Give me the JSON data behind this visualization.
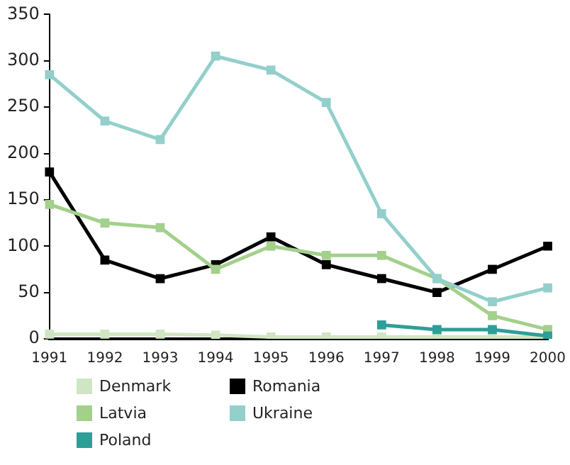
{
  "chart_data": {
    "type": "line",
    "categories": [
      "1991",
      "1992",
      "1993",
      "1994",
      "1995",
      "1996",
      "1997",
      "1998",
      "1999",
      "2000"
    ],
    "series": [
      {
        "name": "Denmark",
        "color": "#cfe5c3",
        "values": [
          5,
          5,
          5,
          4,
          2,
          2,
          2,
          2,
          2,
          2
        ]
      },
      {
        "name": "Romania",
        "color": "#000000",
        "values": [
          180,
          85,
          65,
          80,
          110,
          80,
          65,
          50,
          75,
          100
        ]
      },
      {
        "name": "Latvia",
        "color": "#a3d08b",
        "values": [
          145,
          125,
          120,
          75,
          100,
          90,
          90,
          65,
          25,
          10
        ]
      },
      {
        "name": "Ukraine",
        "color": "#93cfcb",
        "values": [
          285,
          235,
          215,
          305,
          290,
          255,
          135,
          65,
          40,
          55
        ]
      },
      {
        "name": "Poland",
        "color": "#2e9e98",
        "values": [
          null,
          null,
          null,
          null,
          null,
          null,
          15,
          10,
          10,
          3
        ]
      }
    ],
    "ylim": [
      0,
      350
    ],
    "yticks": [
      0,
      50,
      100,
      150,
      200,
      250,
      300,
      350
    ],
    "grid": false,
    "legend": "bottom",
    "marker": "square",
    "line_style": "solid"
  }
}
